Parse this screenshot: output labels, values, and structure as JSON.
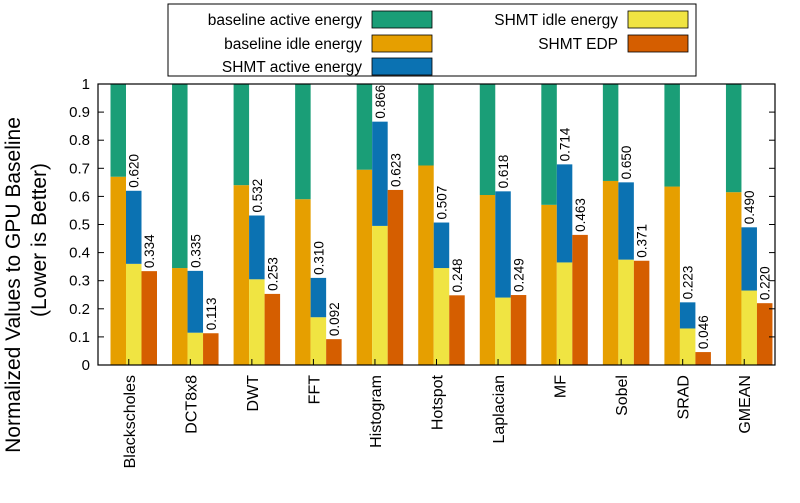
{
  "chart_data": {
    "type": "bar",
    "ylabel_line1": "Normalized Values to GPU Baseline",
    "ylabel_line2": "(Lower is Better)",
    "ylim": [
      0,
      1
    ],
    "yticks": [
      "0",
      "0.1",
      "0.2",
      "0.3",
      "0.4",
      "0.5",
      "0.6",
      "0.7",
      "0.8",
      "0.9",
      "1"
    ],
    "categories": [
      "Blackscholes",
      "DCT8x8",
      "DWT",
      "FFT",
      "Histogram",
      "Hotspot",
      "Laplacian",
      "MF",
      "Sobel",
      "SRAD",
      "GMEAN"
    ],
    "legend": {
      "baseline_active": "baseline active energy",
      "baseline_idle": "baseline idle energy",
      "shmt_active": "SHMT active energy",
      "shmt_idle": "SHMT idle energy",
      "shmt_edp": "SHMT EDP"
    },
    "baseline_total": [
      1,
      1,
      1,
      1,
      1,
      1,
      1,
      1,
      1,
      1,
      1
    ],
    "baseline_idle": [
      0.67,
      0.345,
      0.64,
      0.59,
      0.695,
      0.71,
      0.605,
      0.57,
      0.655,
      0.635,
      0.615
    ],
    "shmt_total": [
      0.62,
      0.335,
      0.532,
      0.31,
      0.866,
      0.507,
      0.618,
      0.714,
      0.65,
      0.223,
      0.49
    ],
    "shmt_total_labels": [
      "0.620",
      "0.335",
      "0.532",
      "0.310",
      "0.866",
      "0.507",
      "0.618",
      "0.714",
      "0.650",
      "0.223",
      "0.490"
    ],
    "shmt_idle": [
      0.36,
      0.115,
      0.305,
      0.17,
      0.495,
      0.345,
      0.24,
      0.365,
      0.375,
      0.13,
      0.265
    ],
    "shmt_edp": [
      0.334,
      0.113,
      0.253,
      0.092,
      0.623,
      0.248,
      0.249,
      0.463,
      0.371,
      0.046,
      0.22
    ],
    "shmt_edp_labels": [
      "0.334",
      "0.113",
      "0.253",
      "0.092",
      "0.623",
      "0.248",
      "0.249",
      "0.463",
      "0.371",
      "0.046",
      "0.220"
    ],
    "colors": {
      "baseline_active": "#1a9e77",
      "baseline_idle": "#e69f00",
      "shmt_active": "#0b72b2",
      "shmt_idle": "#f0e442",
      "shmt_edp": "#d55e00"
    }
  }
}
